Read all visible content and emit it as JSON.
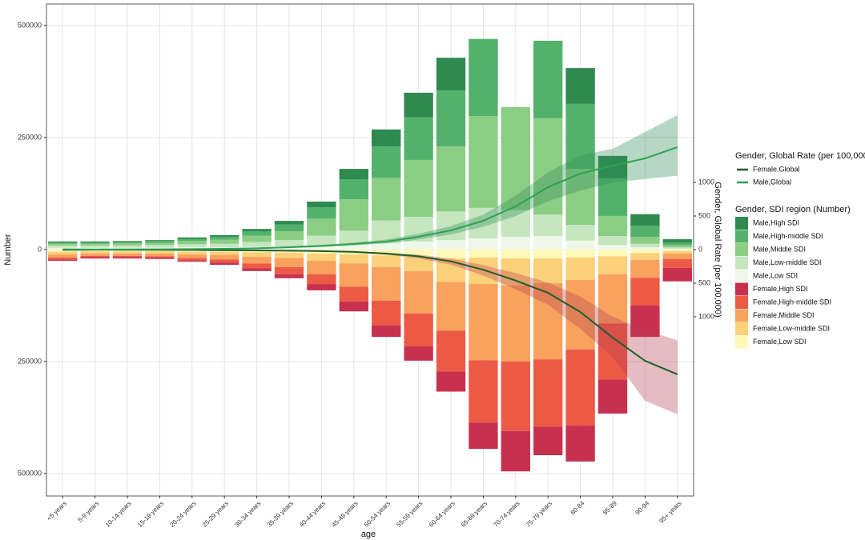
{
  "chart_data": {
    "type": "bar",
    "xlabel": "age",
    "ylabel": "Number",
    "y2label": "Gender, Global Rate (per 100,000)",
    "legend_titles": [
      "Gender, Global Rate (per 100,000)",
      "Gender, SDI region (Number)"
    ],
    "categories": [
      "<5 years",
      "5-9 years",
      "10-14 years",
      "15-19 years",
      "20-24 years",
      "25-29 years",
      "30-34 years",
      "35-39 years",
      "40-44 years",
      "45-49 years",
      "50-54 years",
      "55-59 years",
      "60-64 years",
      "65-69 years",
      "70-74 years",
      "75-79 years",
      "80-84",
      "85-89",
      "90-94",
      "95+ years"
    ],
    "ylim": [
      -550000,
      548000
    ],
    "yticks": [
      {
        "value": -500000,
        "label": "500000"
      },
      {
        "value": -250000,
        "label": "250000"
      },
      0,
      250000,
      500000
    ],
    "y2lim": [
      -3667,
      3655
    ],
    "y2ticks": [
      {
        "value": -1000,
        "label": "1000"
      },
      {
        "value": -500,
        "label": "500"
      },
      0,
      500,
      1000
    ],
    "grid": true,
    "lines": [
      {
        "name": "Female,Global",
        "color": "#1b5e2b",
        "band_color": "#b5404f",
        "axis": "y2",
        "values": [
          -5,
          -2,
          -3,
          -4,
          -6,
          -9,
          -12,
          -16,
          -22,
          -35,
          -60,
          -100,
          -175,
          -300,
          -460,
          -643,
          -929,
          -1310,
          -1655,
          -1857
        ],
        "upper": [
          -2,
          -1,
          -1,
          -2,
          -3,
          -5,
          -7,
          -10,
          -15,
          -25,
          -45,
          -75,
          -135,
          -230,
          -350,
          -490,
          -700,
          -1000,
          -1200,
          -1350
        ],
        "lower": [
          -8,
          -4,
          -5,
          -7,
          -9,
          -13,
          -17,
          -22,
          -30,
          -46,
          -78,
          -130,
          -225,
          -385,
          -590,
          -820,
          -1180,
          -1600,
          -2250,
          -2450
        ]
      },
      {
        "name": "Male,Global",
        "color": "#2ea24f",
        "band_color": "#2e8b57",
        "axis": "y2",
        "values": [
          5,
          2,
          3,
          5,
          8,
          12,
          20,
          35,
          55,
          83,
          119,
          190,
          286,
          429,
          643,
          929,
          1131,
          1250,
          1357,
          1524
        ],
        "upper": [
          8,
          4,
          5,
          8,
          12,
          17,
          28,
          48,
          72,
          105,
          150,
          235,
          350,
          520,
          800,
          1150,
          1400,
          1500,
          1750,
          2000
        ],
        "lower": [
          2,
          1,
          1,
          2,
          4,
          7,
          12,
          22,
          38,
          62,
          90,
          150,
          225,
          340,
          500,
          720,
          880,
          1000,
          1050,
          1100
        ]
      }
    ],
    "series": [
      {
        "name": "Male,High SDI",
        "color": "#2f8a4f",
        "values": [
          2000,
          2000,
          2000,
          2000,
          3000,
          4000,
          5000,
          8000,
          13000,
          23000,
          38000,
          55000,
          73000,
          0,
          0,
          0,
          80000,
          50000,
          26000,
          7000
        ]
      },
      {
        "name": "Male,High-middle SDI",
        "color": "#52b26b",
        "values": [
          3000,
          3000,
          3000,
          4000,
          5000,
          6000,
          10000,
          15000,
          25000,
          45000,
          70000,
          95000,
          125000,
          172000,
          0,
          173000,
          145000,
          84000,
          25000,
          6000
        ]
      },
      {
        "name": "Male,Middle SDI",
        "color": "#8ccd84",
        "values": [
          4000,
          4000,
          5000,
          5000,
          7000,
          9000,
          14000,
          20000,
          38000,
          70000,
          95000,
          127000,
          145000,
          205000,
          230000,
          215000,
          125000,
          45000,
          15000,
          5000
        ]
      },
      {
        "name": "Male,Low-middle SDI",
        "color": "#c5e6bf",
        "values": [
          5000,
          5000,
          5000,
          6000,
          7000,
          8000,
          11000,
          14000,
          22000,
          30000,
          50000,
          55000,
          64000,
          68000,
          60000,
          48000,
          35000,
          20000,
          8000,
          3000
        ]
      },
      {
        "name": "Male,Low SDI",
        "color": "#eef8ea",
        "values": [
          4000,
          4000,
          4000,
          4000,
          5000,
          5000,
          6000,
          7000,
          9000,
          12000,
          15000,
          18000,
          21000,
          25000,
          28000,
          30000,
          20000,
          10000,
          5000,
          2000
        ]
      },
      {
        "name": "Female,High SDI",
        "color": "#c8304f",
        "values": [
          -3000,
          -3000,
          -3000,
          -3000,
          -3000,
          -5000,
          -6000,
          -9000,
          -14000,
          -22000,
          -26000,
          -32000,
          -45000,
          -59000,
          -90000,
          -64000,
          -80000,
          -76000,
          -70000,
          -30000
        ]
      },
      {
        "name": "Female,High-middle SDI",
        "color": "#ec5a45",
        "values": [
          -4000,
          -3000,
          -3000,
          -3000,
          -5000,
          -7000,
          -11000,
          -16000,
          -22000,
          -33000,
          -55000,
          -73000,
          -91000,
          -139000,
          -155000,
          -150000,
          -170000,
          -125000,
          -62000,
          -20000
        ]
      },
      {
        "name": "Female,Middle SDI",
        "color": "#f8a25d",
        "values": [
          -7000,
          -5000,
          -5000,
          -6000,
          -8000,
          -10000,
          -15000,
          -20000,
          -30000,
          -52000,
          -75000,
          -95000,
          -109000,
          -170000,
          -170000,
          -170000,
          -155000,
          -110000,
          -40000,
          -12000
        ]
      },
      {
        "name": "Female,Low-middle SDI",
        "color": "#fdd07a",
        "values": [
          -6000,
          -5000,
          -5000,
          -5000,
          -6000,
          -7000,
          -10000,
          -12000,
          -16000,
          -20000,
          -26000,
          -32000,
          -52000,
          -59000,
          -60000,
          -55000,
          -50000,
          -40000,
          -15000,
          -6000
        ]
      },
      {
        "name": "Female,Low SDI",
        "color": "#fff8b8",
        "values": [
          -5000,
          -4000,
          -4000,
          -4000,
          -5000,
          -5000,
          -6000,
          -7000,
          -9000,
          -11000,
          -13000,
          -16000,
          -20000,
          -18000,
          -20000,
          -20000,
          -18000,
          -15000,
          -8000,
          -3000
        ]
      }
    ]
  }
}
